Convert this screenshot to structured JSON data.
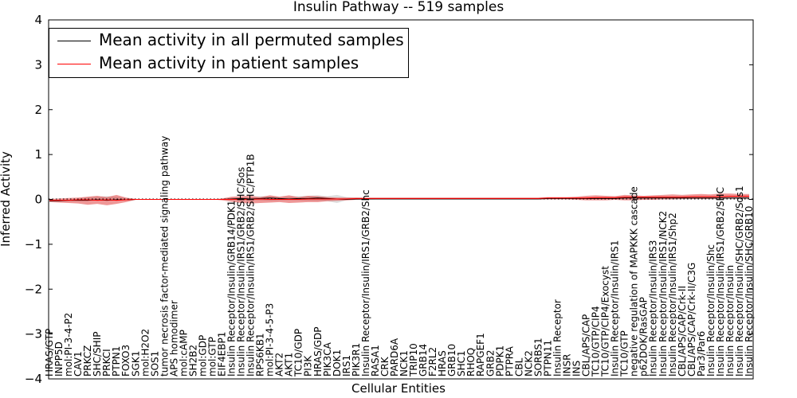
{
  "chart_data": {
    "type": "line",
    "title": "Insulin Pathway -- 519 samples",
    "xlabel": "Cellular Entities",
    "ylabel": "Inferred Activity",
    "ylim": [
      -4,
      4
    ],
    "yticks": [
      -4,
      -3,
      -2,
      -1,
      0,
      1,
      2,
      3,
      4
    ],
    "ytick_labels": [
      "−4",
      "−3",
      "−2",
      "−1",
      "0",
      "1",
      "2",
      "3",
      "4"
    ],
    "legend_position": "upper-left",
    "categories": [
      "HRAS/GTP",
      "INPP5D",
      "mol:PI-3-4-P2",
      "CAV1",
      "PRKCZ",
      "SHC/SHIP",
      "PRKCI",
      "PTPN1",
      "FOXO3",
      "SGK1",
      "mol:H2O2",
      "SOS1",
      "tumor necrosis factor-mediated signaling pathway",
      "APS homodimer",
      "mol:cAMP",
      "SH2B2",
      "mol:GDP",
      "mol:GTP",
      "EIF4EBP1",
      "Insulin Receptor/Insulin/GRB14/PDK1",
      "Insulin Receptor/Insulin/IRS1/GRB2/SHC/Sos",
      "Insulin Receptor/Insulin/IRS1/GRB2/SHC/PTP1B",
      "RPS6KB1",
      "mol:PI-3-4-5-P3",
      "AKT2",
      "AKT1",
      "TC10/GDP",
      "PI3K",
      "HRAS/GDP",
      "PIK3CA",
      "DOK1",
      "IRS1",
      "PIK3R1",
      "Insulin Receptor/Insulin/IRS1/GRB2/Shc",
      "RASA1",
      "CRK",
      "PARD6A",
      "NCK1",
      "TRIP10",
      "GRB14",
      "F2RL2",
      "HRAS",
      "GRB10",
      "SHC1",
      "RHOQ",
      "RAPGEF1",
      "GRB2",
      "PDPK1",
      "PTPRA",
      "CBL",
      "NCK2",
      "SORBS1",
      "PTPN11",
      "Insulin Receptor",
      "INSR",
      "INS",
      "CBL/APS/CAP",
      "TC10/GTP/CIP4",
      "TC10/GTP/CIP4/Exocyst",
      "Insulin Receptor/Insulin/IRS1",
      "TC10/GTP",
      "negative regulation of MAPKKK cascade",
      "p62DOK/RasGAP",
      "Insulin Receptor/Insulin/IRS3",
      "Insulin Receptor/Insulin/IRS1/NCK2",
      "Insulin Receptor/Insulin/IRS1/Shp2",
      "CBL/APS/CAP/Crk-II",
      "CBL/APS/CAP/Crk-II/C3G",
      "Par3/Par6",
      "Insulin Receptor/Insulin/Shc",
      "Insulin Receptor/Insulin/IRS1/GRB2/SHC",
      "Insulin Receptor/Insulin",
      "Insulin Receptor/Insulin/SHC/GRB2/Sos1",
      "Insulin Receptor/Insulin/SHC/GRB10"
    ],
    "series": [
      {
        "name": "Mean activity in all permuted samples",
        "color": "#000000",
        "values": [
          -0.03,
          -0.03,
          -0.02,
          -0.02,
          -0.02,
          -0.01,
          -0.02,
          -0.01,
          -0.01,
          0,
          0,
          0,
          0,
          0,
          0,
          0,
          0,
          0,
          0,
          0.01,
          0.02,
          0.01,
          0.02,
          0.03,
          0.02,
          0.01,
          0.02,
          0.02,
          0.03,
          0.02,
          0.01,
          0,
          0.01,
          0.01,
          0.01,
          0.01,
          0.01,
          0.01,
          0.01,
          0.01,
          0.01,
          0.01,
          0.01,
          0.01,
          0.01,
          0.01,
          0.01,
          0.01,
          0.01,
          0.01,
          0.01,
          0.01,
          0.02,
          0.02,
          0.02,
          0.02,
          0.02,
          0.02,
          0.02,
          0.02,
          0.03,
          0.03,
          0.03,
          0.03,
          0.03,
          0.03,
          0.03,
          0.03,
          0.03,
          0.03,
          0.03,
          0.03,
          0.03,
          0.03
        ],
        "band_low": [
          -0.03,
          -0.03,
          -0.03,
          -0.03,
          -0.03,
          -0.02,
          -0.03,
          -0.02,
          -0.01,
          0,
          0,
          0,
          0,
          0,
          0,
          0,
          0,
          0,
          0,
          -0.01,
          -0.01,
          -0.01,
          -0.02,
          -0.03,
          -0.02,
          -0.02,
          -0.02,
          -0.03,
          -0.03,
          -0.04,
          -0.08,
          -0.02,
          -0.01,
          -0.01,
          0,
          0,
          0,
          0,
          0,
          0,
          0,
          0,
          0,
          0,
          0,
          0,
          0,
          0,
          0,
          0,
          0,
          0,
          0,
          0,
          0,
          0,
          0,
          0,
          0,
          0,
          0,
          0,
          0,
          0,
          0,
          0,
          0,
          0,
          0,
          0,
          0,
          0,
          0,
          0
        ],
        "band_high": [
          -0.02,
          -0.01,
          0,
          0.02,
          0.05,
          0.06,
          0.07,
          0.06,
          0.03,
          0.01,
          0,
          0,
          0,
          0,
          0,
          0,
          0,
          0,
          0,
          0.04,
          0.06,
          0.05,
          0.07,
          0.07,
          0.05,
          0.06,
          0.07,
          0.08,
          0.09,
          0.07,
          0.1,
          0.05,
          0.04,
          0.03,
          0.02,
          0.02,
          0.02,
          0.02,
          0.02,
          0.02,
          0.02,
          0.02,
          0.02,
          0.02,
          0.02,
          0.02,
          0.02,
          0.02,
          0.02,
          0.02,
          0.02,
          0.02,
          0.03,
          0.03,
          0.03,
          0.03,
          0.03,
          0.03,
          0.03,
          0.03,
          0.04,
          0.04,
          0.04,
          0.04,
          0.04,
          0.04,
          0.04,
          0.05,
          0.05,
          0.05,
          0.05,
          0.05,
          0.05,
          0.05
        ]
      },
      {
        "name": "Mean activity in patient samples",
        "color": "#ff0000",
        "values": [
          -0.02,
          -0.02,
          -0.02,
          -0.01,
          -0.01,
          -0.02,
          -0.01,
          -0.02,
          -0.01,
          0,
          0,
          0,
          0,
          0,
          0,
          0,
          0,
          0,
          0,
          0,
          0,
          0,
          0.01,
          0,
          0,
          0,
          0,
          0.01,
          0.01,
          0.01,
          0.01,
          0.01,
          0.02,
          0.02,
          0.02,
          0.02,
          0.02,
          0.02,
          0.02,
          0.02,
          0.02,
          0.02,
          0.02,
          0.02,
          0.02,
          0.02,
          0.02,
          0.02,
          0.02,
          0.02,
          0.02,
          0.02,
          0.03,
          0.03,
          0.03,
          0.03,
          0.03,
          0.04,
          0.04,
          0.04,
          0.05,
          0.05,
          0.05,
          0.05,
          0.05,
          0.05,
          0.05,
          0.06,
          0.06,
          0.06,
          0.06,
          0.07,
          0.07,
          0.07
        ],
        "band_low": [
          -0.06,
          -0.07,
          -0.08,
          -0.09,
          -0.12,
          -0.1,
          -0.13,
          -0.1,
          -0.06,
          -0.01,
          0,
          0,
          0,
          0,
          0,
          0,
          0,
          0,
          -0.02,
          -0.05,
          -0.08,
          -0.09,
          -0.08,
          -0.07,
          -0.06,
          -0.08,
          -0.07,
          -0.06,
          -0.06,
          -0.04,
          -0.03,
          -0.02,
          -0.01,
          0,
          0,
          0,
          0,
          0,
          0,
          0,
          0,
          0,
          0,
          0,
          0,
          0,
          0,
          0,
          0,
          0,
          0,
          0,
          0,
          0,
          0,
          -0.01,
          -0.02,
          -0.02,
          -0.02,
          -0.01,
          -0.02,
          -0.02,
          -0.01,
          -0.01,
          0,
          0,
          0.01,
          0.01,
          0.01,
          0.01,
          0.02,
          0.02,
          0.02,
          0.02
        ],
        "band_high": [
          0.01,
          0.02,
          0.03,
          0.04,
          0.06,
          0.08,
          0.05,
          0.1,
          0.04,
          0.01,
          0,
          0,
          0,
          0,
          0,
          0,
          0,
          0,
          0.02,
          0.06,
          0.07,
          0.08,
          0.05,
          0.09,
          0.06,
          0.09,
          0.05,
          0.08,
          0.07,
          0.05,
          0.04,
          0.04,
          0.04,
          0.04,
          0.04,
          0.04,
          0.04,
          0.04,
          0.04,
          0.04,
          0.04,
          0.04,
          0.04,
          0.04,
          0.04,
          0.04,
          0.04,
          0.04,
          0.04,
          0.04,
          0.04,
          0.04,
          0.05,
          0.05,
          0.05,
          0.06,
          0.08,
          0.09,
          0.08,
          0.07,
          0.1,
          0.09,
          0.08,
          0.09,
          0.1,
          0.11,
          0.1,
          0.11,
          0.12,
          0.11,
          0.13,
          0.13,
          0.12,
          0.12
        ]
      }
    ]
  }
}
